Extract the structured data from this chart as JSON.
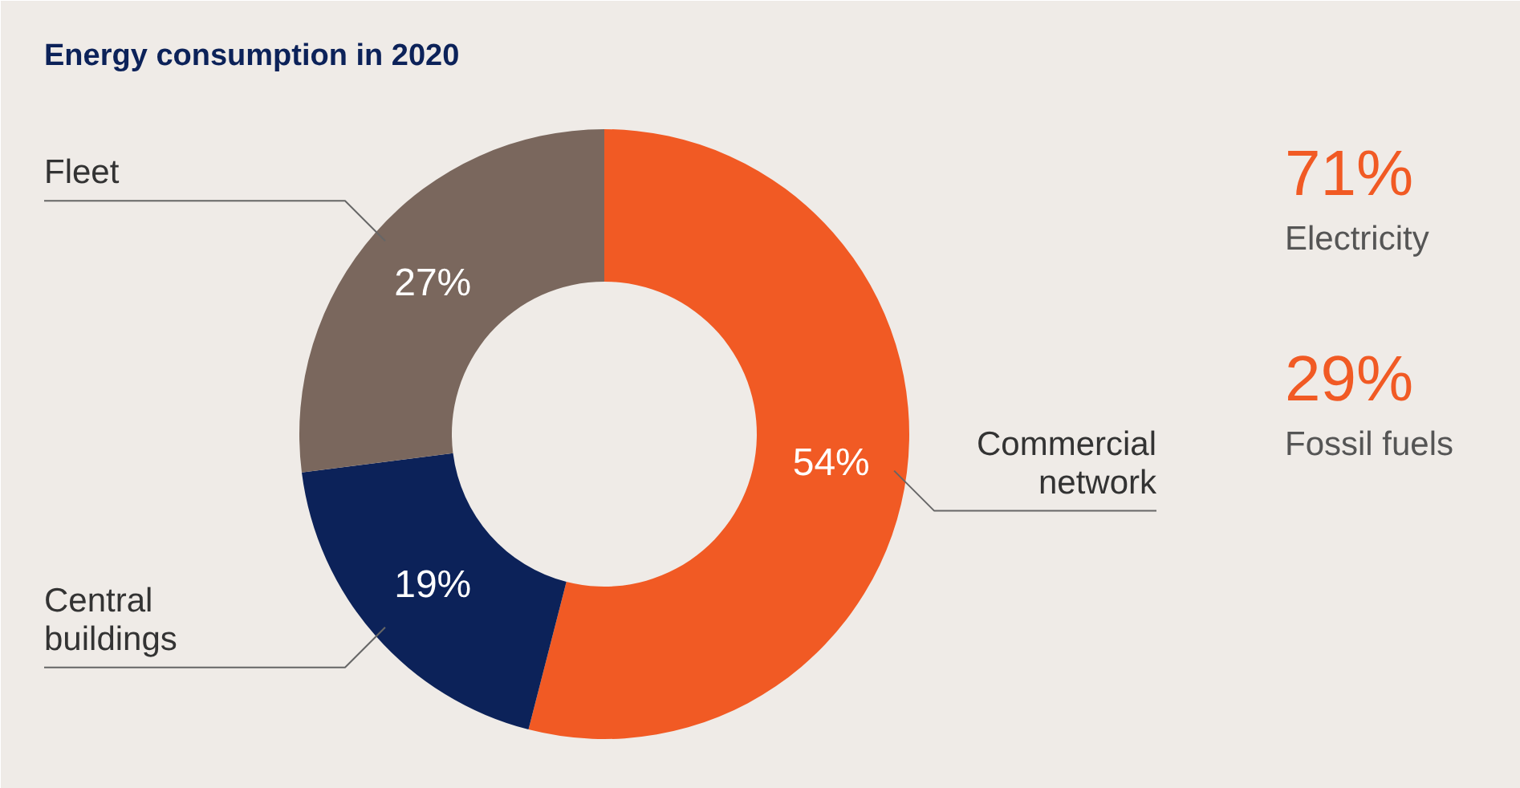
{
  "chart_data": {
    "type": "donut",
    "title": "Energy consumption in 2020",
    "categories": [
      "Commercial network",
      "Central buildings",
      "Fleet"
    ],
    "values": [
      54,
      19,
      27
    ],
    "value_labels": [
      "54%",
      "19%",
      "27%"
    ],
    "colors": [
      "#f15a24",
      "#0c2259",
      "#7a675d"
    ],
    "annotations": [
      "71%",
      "Electricity",
      "29%",
      "Fossil fuels"
    ]
  }
}
